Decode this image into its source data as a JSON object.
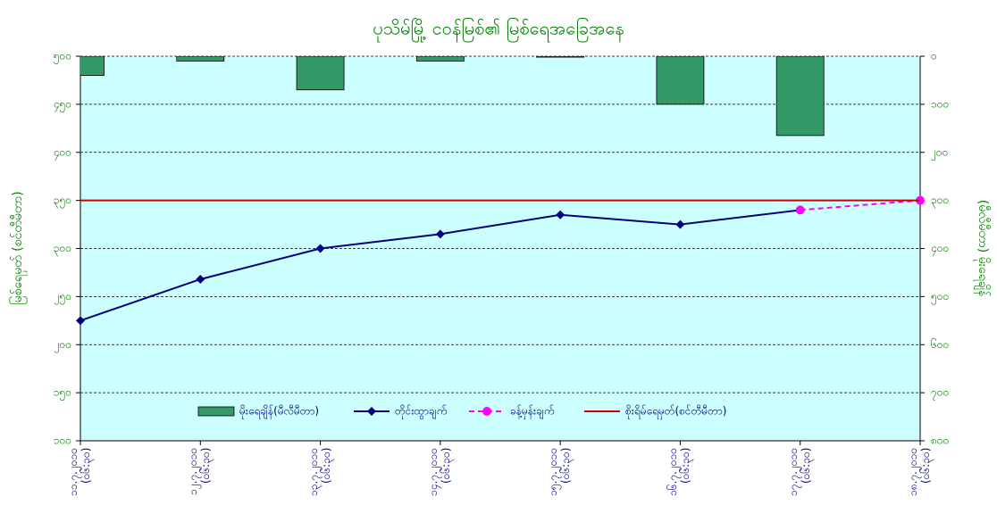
{
  "chart_data": {
    "type": "combo",
    "title": "ပုသိမ်မြို့ ငဝန်မြစ်၏ မြစ်ရေအခြေအနေ",
    "y_label": "မြစ်ရေမှတ် (စင်တီမီတာ)",
    "y2_label": "(မီလီမီတာ) မိုးရေချိန်",
    "categories": [
      "၁၁.၇.၂၀၁၀\n(၀၆:၃၀)",
      "၁၂.၇.၂၀၁၀\n(၀၆:၃၀)",
      "၁၃.၇.၂၀၁၀\n(၀၆:၃၀)",
      "၁၄.၇.၂၀၁၀\n(၀၆:၃၀)",
      "၁၅.၇.၂၀၁၀\n(၀၆:၃၀)",
      "၁၆.၇.၂၀၁၀\n(၀၆:၃၀)",
      "၁၇.၇.၂၀၁၀\n(၀၆:၃၀)",
      "၁၈.၇.၂၀၁၀\n(၀၆:၃၀)"
    ],
    "ylim": [
      100,
      500
    ],
    "yticks": [
      {
        "value": 100,
        "label": "၁၀၀"
      },
      {
        "value": 150,
        "label": "၁၅၀"
      },
      {
        "value": 200,
        "label": "၂၀၀"
      },
      {
        "value": 250,
        "label": "၂၅၀"
      },
      {
        "value": 300,
        "label": "၃၀၀"
      },
      {
        "value": 350,
        "label": "၃၅၀"
      },
      {
        "value": 400,
        "label": "၄၀၀"
      },
      {
        "value": 450,
        "label": "၄၅၀"
      },
      {
        "value": 500,
        "label": "၅၀၀"
      }
    ],
    "y2lim": [
      0,
      800
    ],
    "y2_inverted": true,
    "y2ticks": [
      {
        "value": 0,
        "label": "၀"
      },
      {
        "value": 100,
        "label": "၁၀၀"
      },
      {
        "value": 200,
        "label": "၂၀၀"
      },
      {
        "value": 300,
        "label": "၃၀၀"
      },
      {
        "value": 400,
        "label": "၄၀၀"
      },
      {
        "value": 500,
        "label": "၅၀၀"
      },
      {
        "value": 600,
        "label": "၆၀၀"
      },
      {
        "value": 700,
        "label": "၇၀၀"
      },
      {
        "value": 800,
        "label": "၈၀၀"
      }
    ],
    "grid": true,
    "legend_position": "bottom",
    "series": [
      {
        "name": "မိုးရေချိန်(မီလီမီတာ)",
        "type": "bar",
        "axis": "y2",
        "color": "#339966",
        "values": [
          40,
          10,
          70,
          10,
          2,
          100,
          165,
          null
        ]
      },
      {
        "name": "တိုင်းထွာချက်",
        "type": "line",
        "color": "#000080",
        "marker": "diamond",
        "values": [
          225,
          268,
          300,
          315,
          335,
          325,
          340,
          null
        ]
      },
      {
        "name": "ခန့်မှန်းချက်",
        "type": "line",
        "color": "#ff00ff",
        "marker": "circle",
        "dashed": true,
        "values": [
          null,
          null,
          null,
          null,
          null,
          null,
          340,
          350
        ]
      },
      {
        "name": "စိုးရိမ်ရေမှတ်(စင်တီမီတာ)",
        "type": "line",
        "color": "#cc0000",
        "values": [
          350,
          350,
          350,
          350,
          350,
          350,
          350,
          350
        ]
      }
    ]
  }
}
